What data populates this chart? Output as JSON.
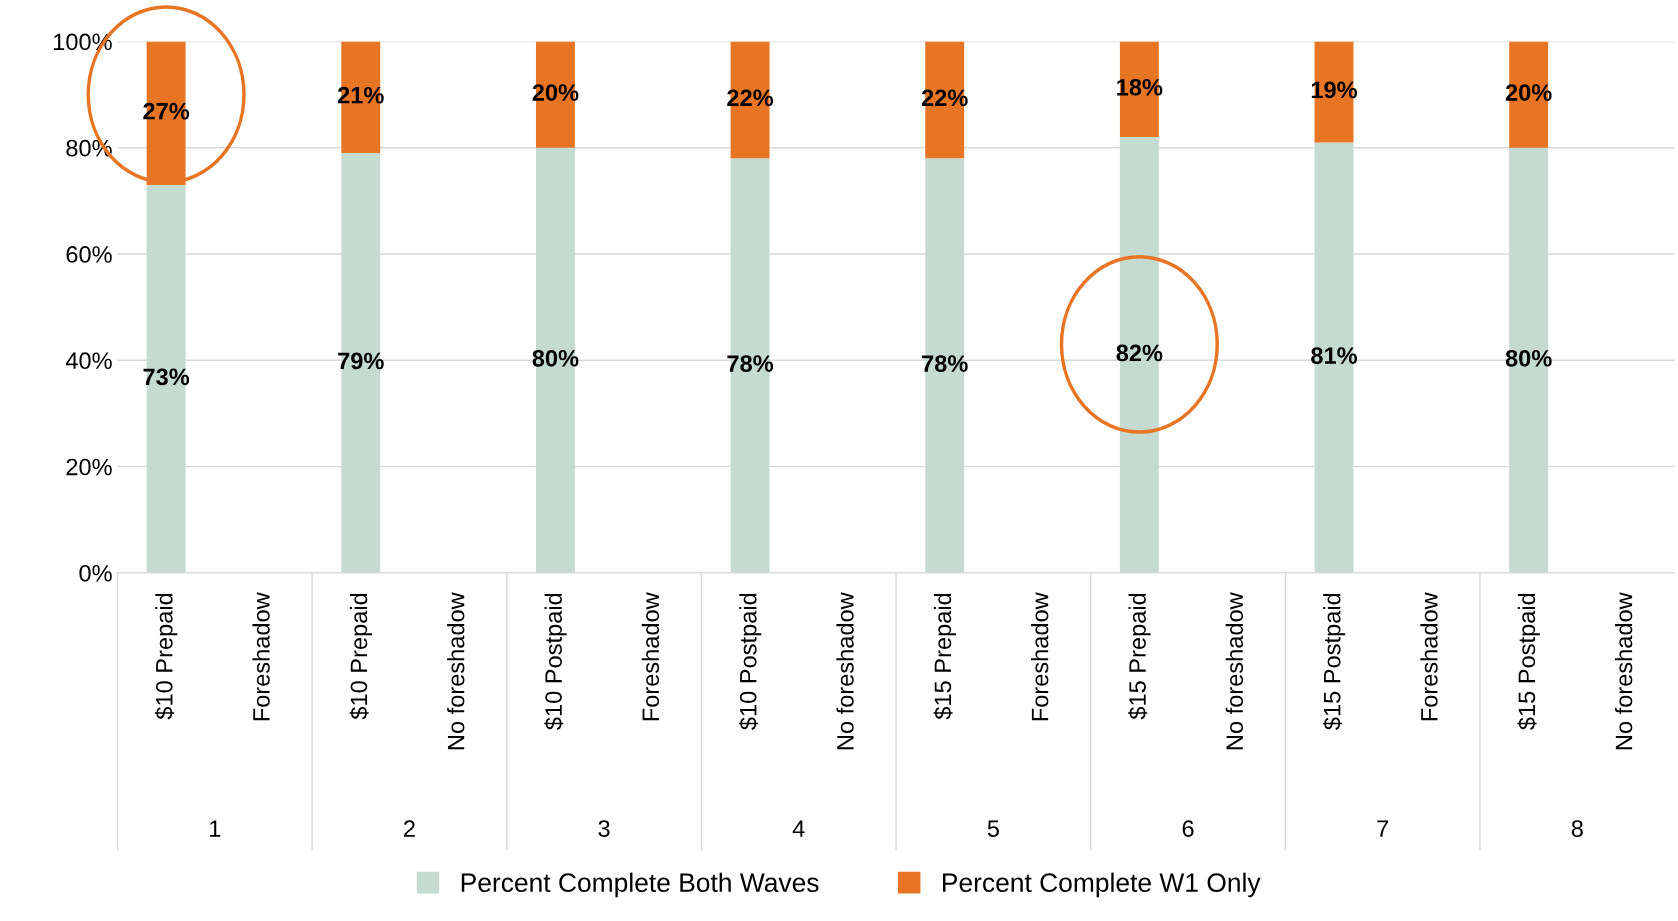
{
  "chart_data": {
    "type": "bar",
    "stacked": true,
    "categories": [
      "$10 Prepaid",
      "Foreshadow",
      "$10 Prepaid",
      "No foreshadow",
      "$10 Postpaid",
      "Foreshadow",
      "$10 Postpaid",
      "No foreshadow",
      "$15 Prepaid",
      "Foreshadow",
      "$15 Prepaid",
      "No foreshadow",
      "$15 Postpaid",
      "Foreshadow",
      "$15 Postpaid",
      "No foreshadow"
    ],
    "series": [
      {
        "name": "Percent Complete Both Waves",
        "color": "#c5dbd1",
        "values": [
          73,
          null,
          79,
          null,
          80,
          null,
          78,
          null,
          78,
          null,
          82,
          null,
          81,
          null,
          80,
          null
        ],
        "value_labels": [
          "73%",
          null,
          "79%",
          null,
          "80%",
          null,
          "78%",
          null,
          "78%",
          null,
          "82%",
          null,
          "81%",
          null,
          "80%",
          null
        ]
      },
      {
        "name": "Percent Complete W1 Only",
        "color": "#e87524",
        "values": [
          27,
          null,
          21,
          null,
          20,
          null,
          22,
          null,
          22,
          null,
          18,
          null,
          19,
          null,
          20,
          null
        ],
        "value_labels": [
          "27%",
          null,
          "21%",
          null,
          "20%",
          null,
          "22%",
          null,
          "22%",
          null,
          "18%",
          null,
          "19%",
          null,
          "20%",
          null
        ]
      }
    ],
    "annotations": [
      "1",
      "2",
      "3",
      "4",
      "5",
      "6",
      "7",
      "8"
    ],
    "ylim": [
      0,
      100
    ],
    "yticks": [
      {
        "value": 0,
        "label": "0%"
      },
      {
        "value": 20,
        "label": "20%"
      },
      {
        "value": 40,
        "label": "40%"
      },
      {
        "value": 60,
        "label": "60%"
      },
      {
        "value": 80,
        "label": "80%"
      },
      {
        "value": 100,
        "label": "100%"
      }
    ],
    "grid": "y",
    "legend": "bottom"
  }
}
